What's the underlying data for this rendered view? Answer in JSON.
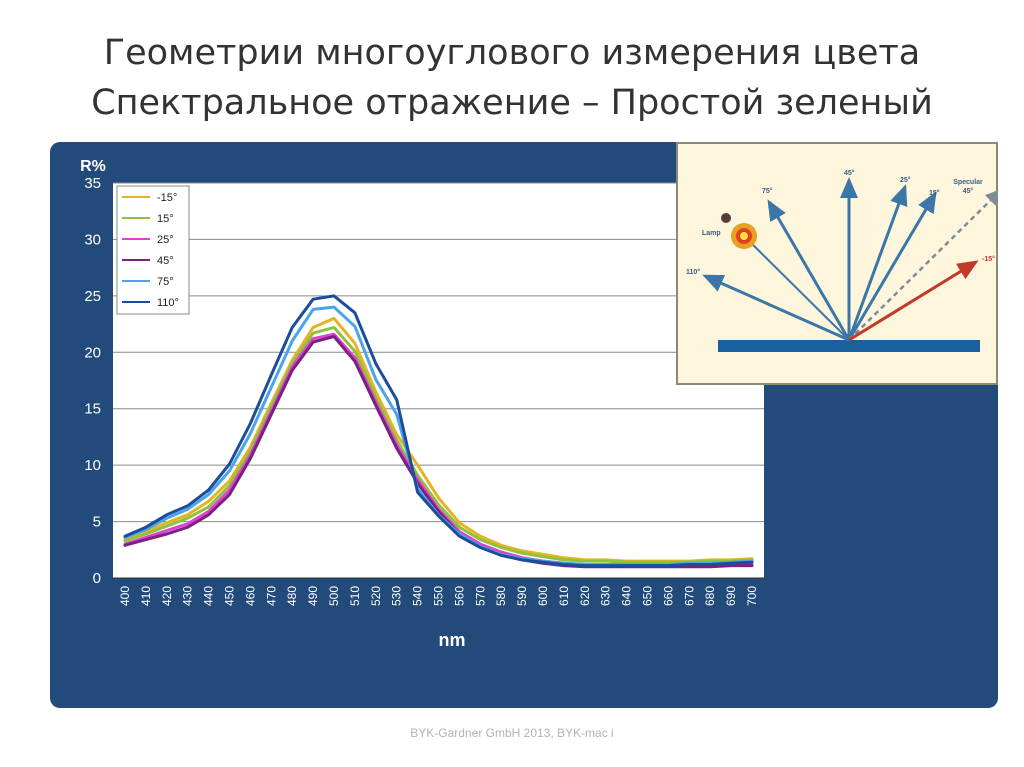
{
  "slide": {
    "title_line1": "Геометрии многоуглового измерения цвета",
    "title_line2": "Спектральное отражение – Простой зеленый",
    "footer": "BYK-Gardner GmbH 2013, BYK-mac i"
  },
  "colors": {
    "panel": "#224a7a",
    "plot_bg": "#ffffff",
    "inset_bg": "#fdf6dc",
    "beam": "#3a77a8",
    "beam_red": "#c0392b",
    "specular": "#7d8c99",
    "sample": "#1a5f9e"
  },
  "chart_data": {
    "type": "line",
    "title": "",
    "xlabel": "nm",
    "ylabel": "R%",
    "ylim": [
      0,
      35
    ],
    "yticks": [
      0,
      5,
      10,
      15,
      20,
      25,
      30,
      35
    ],
    "grid": "horizontal",
    "legend_position": "top-left",
    "x": [
      400,
      410,
      420,
      430,
      440,
      450,
      460,
      470,
      480,
      490,
      500,
      510,
      520,
      530,
      540,
      550,
      560,
      570,
      580,
      590,
      600,
      610,
      620,
      630,
      640,
      650,
      660,
      670,
      680,
      690,
      700
    ],
    "series": [
      {
        "name": "-15°",
        "color": "#e3b523",
        "values": [
          3.5,
          4.1,
          4.9,
          5.6,
          6.8,
          8.6,
          11.6,
          15.5,
          19.3,
          22.2,
          23.0,
          20.8,
          16.5,
          12.7,
          10.0,
          7.1,
          4.9,
          3.7,
          2.9,
          2.4,
          2.1,
          1.8,
          1.6,
          1.6,
          1.5,
          1.5,
          1.5,
          1.5,
          1.6,
          1.6,
          1.7
        ]
      },
      {
        "name": "15°",
        "color": "#8fc23f",
        "values": [
          3.3,
          3.9,
          4.6,
          5.3,
          6.3,
          8.2,
          11.3,
          15.2,
          19.0,
          21.7,
          22.2,
          20.1,
          16.0,
          12.2,
          9.1,
          6.5,
          4.5,
          3.4,
          2.7,
          2.2,
          1.9,
          1.6,
          1.5,
          1.5,
          1.4,
          1.4,
          1.4,
          1.4,
          1.5,
          1.5,
          1.6
        ]
      },
      {
        "name": "25°",
        "color": "#e040d0",
        "values": [
          3.0,
          3.6,
          4.2,
          4.8,
          5.9,
          7.8,
          10.9,
          14.8,
          18.7,
          21.2,
          21.6,
          19.5,
          15.6,
          11.8,
          8.7,
          6.1,
          4.1,
          3.0,
          2.3,
          1.8,
          1.5,
          1.3,
          1.2,
          1.2,
          1.1,
          1.1,
          1.1,
          1.1,
          1.2,
          1.2,
          1.3
        ]
      },
      {
        "name": "45°",
        "color": "#7a2080",
        "values": [
          2.9,
          3.4,
          3.9,
          4.5,
          5.6,
          7.4,
          10.6,
          14.5,
          18.4,
          20.9,
          21.4,
          19.2,
          15.3,
          11.5,
          8.4,
          5.9,
          3.9,
          2.8,
          2.1,
          1.6,
          1.3,
          1.1,
          1.0,
          1.0,
          1.0,
          1.0,
          1.0,
          1.0,
          1.0,
          1.1,
          1.1
        ]
      },
      {
        "name": "75°",
        "color": "#4aa5e8",
        "values": [
          3.6,
          4.3,
          5.3,
          6.1,
          7.4,
          9.5,
          12.8,
          16.9,
          21.0,
          23.8,
          24.0,
          22.3,
          17.6,
          14.5,
          7.9,
          5.6,
          3.9,
          2.8,
          2.1,
          1.7,
          1.5,
          1.3,
          1.2,
          1.2,
          1.2,
          1.2,
          1.2,
          1.3,
          1.3,
          1.4,
          1.5
        ]
      },
      {
        "name": "110°",
        "color": "#1c4c9a",
        "values": [
          3.7,
          4.5,
          5.6,
          6.4,
          7.8,
          10.1,
          13.7,
          18.0,
          22.2,
          24.7,
          25.0,
          23.5,
          19.0,
          15.8,
          7.6,
          5.5,
          3.7,
          2.7,
          2.0,
          1.6,
          1.4,
          1.2,
          1.1,
          1.1,
          1.1,
          1.1,
          1.1,
          1.2,
          1.2,
          1.3,
          1.4
        ]
      }
    ]
  },
  "diagram": {
    "labels": {
      "a45": "45°",
      "a25": "25°",
      "a15": "15°",
      "a75": "75°",
      "specular_line1": "Specular",
      "specular_line2": "45°",
      "lamp": "Lamp",
      "a110": "110°",
      "am15": "-15°"
    }
  }
}
